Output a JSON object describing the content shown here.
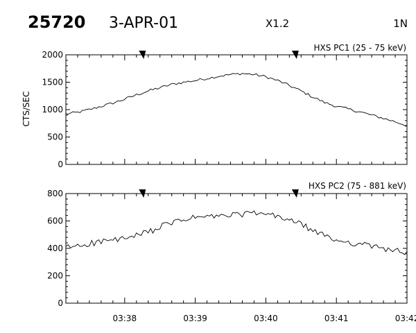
{
  "header": {
    "event_id": "25720",
    "date": "3-APR-01",
    "flare_class": "X1.2",
    "location": "1N"
  },
  "chart_data": [
    {
      "type": "line",
      "title": "HXS PC1 (25 - 75 keV)",
      "xlabel": "",
      "ylabel": "CTS/SEC",
      "xlim": [
        "03:37:10",
        "03:42:00"
      ],
      "ylim": [
        0,
        2000
      ],
      "yticks": [
        "0",
        "500",
        "1000",
        "1500",
        "2000"
      ],
      "xticks": [
        "03:38",
        "03:39",
        "03:40",
        "03:41",
        "03:42"
      ],
      "markers": [
        "03:38:15",
        "03:40:25"
      ],
      "series": [
        {
          "x": [
            "03:37:10",
            "03:37:20",
            "03:37:30",
            "03:37:40",
            "03:37:50",
            "03:38:00",
            "03:38:10",
            "03:38:20",
            "03:38:30",
            "03:38:40",
            "03:38:50",
            "03:39:00",
            "03:39:10",
            "03:39:20",
            "03:39:30",
            "03:39:40",
            "03:39:50",
            "03:40:00",
            "03:40:10",
            "03:40:20",
            "03:40:30",
            "03:40:40",
            "03:40:50",
            "03:41:00",
            "03:41:10",
            "03:41:20",
            "03:41:30",
            "03:41:40",
            "03:41:50",
            "03:42:00"
          ],
          "values": [
            920,
            950,
            1000,
            1060,
            1120,
            1190,
            1270,
            1340,
            1400,
            1460,
            1500,
            1530,
            1570,
            1610,
            1640,
            1660,
            1640,
            1600,
            1530,
            1440,
            1340,
            1230,
            1130,
            1060,
            1010,
            960,
            900,
            840,
            780,
            710
          ]
        }
      ]
    },
    {
      "type": "line",
      "title": "HXS PC2 (75 - 881 keV)",
      "xlabel": "",
      "ylabel": "",
      "xlim": [
        "03:37:10",
        "03:42:00"
      ],
      "ylim": [
        0,
        800
      ],
      "yticks": [
        "0",
        "200",
        "400",
        "600",
        "800"
      ],
      "xticks": [
        "03:38",
        "03:39",
        "03:40",
        "03:41",
        "03:42"
      ],
      "markers": [
        "03:38:15",
        "03:40:25"
      ],
      "series": [
        {
          "x": [
            "03:37:10",
            "03:37:20",
            "03:37:30",
            "03:37:40",
            "03:37:50",
            "03:38:00",
            "03:38:10",
            "03:38:20",
            "03:38:30",
            "03:38:40",
            "03:38:50",
            "03:39:00",
            "03:39:10",
            "03:39:20",
            "03:39:30",
            "03:39:40",
            "03:39:50",
            "03:40:00",
            "03:40:10",
            "03:40:20",
            "03:40:30",
            "03:40:40",
            "03:40:50",
            "03:41:00",
            "03:41:10",
            "03:41:20",
            "03:41:30",
            "03:41:40",
            "03:41:50",
            "03:42:00"
          ],
          "values": [
            405,
            420,
            435,
            450,
            460,
            470,
            490,
            520,
            555,
            585,
            610,
            625,
            630,
            635,
            640,
            650,
            655,
            650,
            630,
            610,
            575,
            530,
            490,
            460,
            445,
            430,
            415,
            400,
            385,
            365
          ]
        }
      ]
    }
  ]
}
